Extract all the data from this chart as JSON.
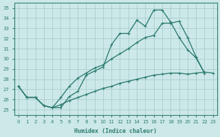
{
  "xlabel": "Humidex (Indice chaleur)",
  "background_color": "#cce8e8",
  "grid_color": "#aacccc",
  "line_color": "#2e7d6e",
  "xlim": [
    -0.5,
    23.5
  ],
  "ylim": [
    24.5,
    35.5
  ],
  "yticks": [
    25,
    26,
    27,
    28,
    29,
    30,
    31,
    32,
    33,
    34,
    35
  ],
  "xticks": [
    0,
    1,
    2,
    3,
    4,
    5,
    6,
    7,
    8,
    9,
    10,
    11,
    12,
    13,
    14,
    15,
    16,
    17,
    18,
    19,
    20,
    21,
    22,
    23
  ],
  "series1_x": [
    0,
    1,
    2,
    3,
    4,
    5,
    6,
    7,
    8,
    9,
    10,
    11,
    12,
    13,
    14,
    15,
    16,
    17,
    18,
    19,
    20,
    21,
    22
  ],
  "series1_y": [
    27.3,
    26.2,
    26.2,
    25.4,
    25.2,
    25.2,
    26.3,
    26.8,
    28.4,
    28.8,
    29.2,
    31.4,
    32.5,
    32.5,
    33.8,
    33.2,
    34.8,
    34.8,
    33.6,
    32.1,
    30.9,
    30.1,
    28.6
  ],
  "series2_x": [
    0,
    1,
    2,
    3,
    4,
    5,
    6,
    7,
    8,
    9,
    10,
    11,
    12,
    13,
    14,
    15,
    16,
    17,
    18,
    19,
    20,
    21,
    22
  ],
  "series2_y": [
    27.3,
    26.2,
    26.2,
    25.4,
    25.2,
    26.2,
    27.3,
    28.1,
    28.6,
    29.1,
    29.4,
    30.0,
    30.5,
    31.0,
    31.6,
    32.1,
    32.3,
    33.5,
    33.5,
    33.7,
    32.1,
    30.2,
    28.6
  ],
  "series3_x": [
    0,
    1,
    2,
    3,
    4,
    5,
    6,
    7,
    8,
    9,
    10,
    11,
    12,
    13,
    14,
    15,
    16,
    17,
    18,
    19,
    20,
    21,
    22,
    23
  ],
  "series3_y": [
    27.3,
    26.2,
    26.2,
    25.4,
    25.2,
    25.5,
    25.9,
    26.2,
    26.5,
    26.8,
    27.1,
    27.3,
    27.6,
    27.8,
    28.0,
    28.2,
    28.4,
    28.5,
    28.6,
    28.6,
    28.5,
    28.6,
    28.7,
    28.6
  ],
  "line_width": 1.0,
  "marker_size": 2.5
}
